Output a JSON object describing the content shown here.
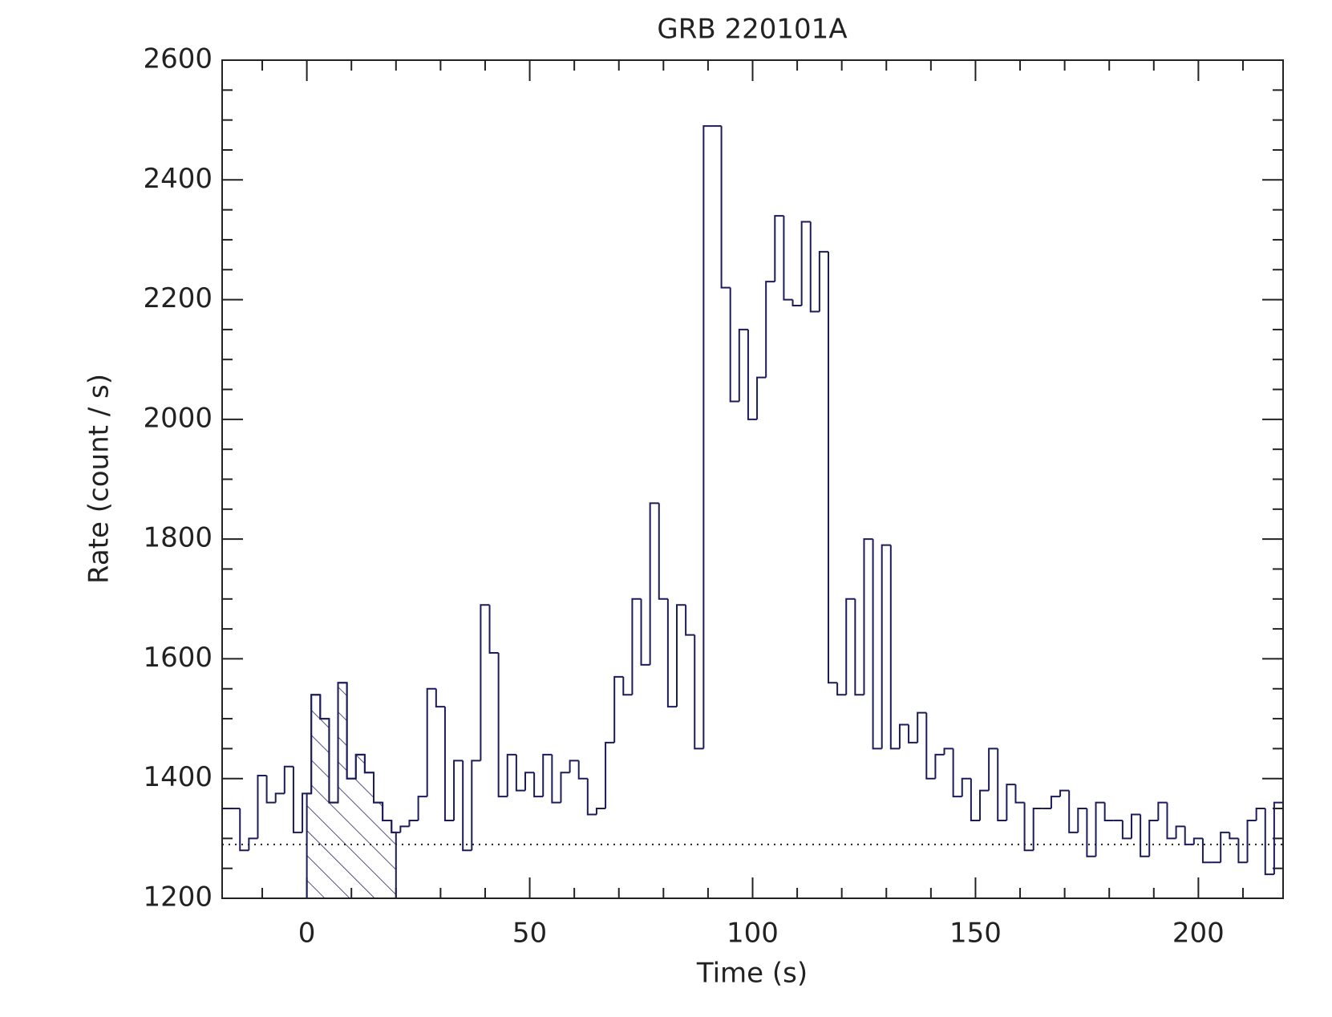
{
  "chart_data": {
    "type": "histogram",
    "title": "GRB 220101A",
    "xlabel": "Time (s)",
    "ylabel": "Rate (count / s)",
    "color": "#1c1c5a",
    "bins": [
      -19,
      -17,
      -15,
      -13,
      -11,
      -9,
      -7,
      -5,
      -3,
      -1,
      1,
      3,
      5,
      7,
      9,
      11,
      13,
      15,
      17,
      19,
      21,
      23,
      25,
      27,
      29,
      31,
      33,
      35,
      37,
      39,
      41,
      43,
      45,
      47,
      49,
      51,
      53,
      55,
      57,
      59,
      61,
      63,
      65,
      67,
      69,
      71,
      73,
      75,
      77,
      79,
      81,
      83,
      85,
      87,
      89,
      91,
      93,
      95,
      97,
      99,
      101,
      103,
      105,
      107,
      109,
      111,
      113,
      115,
      117,
      119,
      121,
      123,
      125,
      127,
      129,
      131,
      133,
      135,
      137,
      139,
      141,
      143,
      145,
      147,
      149,
      151,
      153,
      155,
      157,
      159,
      161,
      163,
      165,
      167,
      169,
      171,
      173,
      175,
      177,
      179,
      181,
      183,
      185,
      187,
      189,
      191,
      193,
      195,
      197,
      199,
      201,
      203,
      205,
      207,
      209,
      211,
      213,
      215,
      217,
      219
    ],
    "counts": [
      1350,
      1350,
      1280,
      1300,
      1405,
      1360,
      1375,
      1420,
      1310,
      1375,
      1540,
      1500,
      1360,
      1560,
      1400,
      1440,
      1410,
      1360,
      1330,
      1310,
      1320,
      1330,
      1370,
      1550,
      1520,
      1330,
      1430,
      1280,
      1430,
      1690,
      1610,
      1370,
      1440,
      1380,
      1410,
      1370,
      1440,
      1360,
      1410,
      1430,
      1400,
      1340,
      1350,
      1460,
      1570,
      1540,
      1700,
      1590,
      1860,
      1700,
      1520,
      1690,
      1640,
      1450,
      2490,
      2490,
      2220,
      2030,
      2150,
      2000,
      2070,
      2230,
      2340,
      2200,
      2190,
      2330,
      2180,
      2280,
      1560,
      1540,
      1700,
      1540,
      1800,
      1450,
      1790,
      1450,
      1490,
      1460,
      1510,
      1400,
      1440,
      1450,
      1370,
      1400,
      1330,
      1380,
      1450,
      1330,
      1390,
      1360,
      1280,
      1350,
      1350,
      1370,
      1380,
      1310,
      1350,
      1270,
      1360,
      1330,
      1330,
      1300,
      1340,
      1270,
      1330,
      1360,
      1300,
      1320,
      1290,
      1300,
      1260,
      1260,
      1310,
      1300,
      1260,
      1330,
      1350,
      1240,
      1360
    ],
    "background": 1290,
    "shaded_range": [
      0,
      20
    ],
    "xlim": [
      -19,
      219
    ],
    "ylim": [
      1200,
      2600
    ],
    "xticks": [
      0,
      50,
      100,
      150,
      200
    ],
    "xminorticks": [
      -10,
      10,
      20,
      30,
      40,
      60,
      70,
      80,
      90,
      110,
      120,
      130,
      140,
      160,
      170,
      180,
      190,
      210
    ],
    "yticks": [
      1200,
      1400,
      1600,
      1800,
      2000,
      2200,
      2400,
      2600
    ],
    "yminorticks": [
      1250,
      1300,
      1350,
      1450,
      1500,
      1550,
      1650,
      1700,
      1750,
      1850,
      1900,
      1950,
      2050,
      2100,
      2150,
      2250,
      2300,
      2350,
      2450,
      2500,
      2550
    ]
  }
}
